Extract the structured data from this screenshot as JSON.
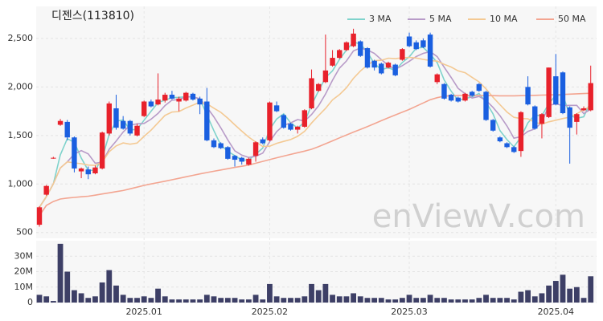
{
  "chart_data": [
    {
      "type": "candlestick",
      "title": "디젠스(113810)",
      "watermark": "enViewV.com",
      "up_color": "#e8212b",
      "down_color": "#1a5fe0",
      "open": [
        580,
        890,
        1270,
        1610,
        1640,
        1480,
        1130,
        1150,
        1110,
        1160,
        1520,
        1780,
        1650,
        1650,
        1500,
        1700,
        1850,
        1820,
        1860,
        1920,
        1850,
        1860,
        1930,
        1880,
        1850,
        1450,
        1420,
        1380,
        1290,
        1270,
        1200,
        1290,
        1460,
        1450,
        1810,
        1710,
        1620,
        1560,
        1590,
        1780,
        1960,
        2050,
        2220,
        2300,
        2380,
        2420,
        2470,
        2400,
        2270,
        2240,
        2200,
        2230,
        2280,
        2520,
        2460,
        2480,
        2540,
        2050,
        2030,
        1920,
        1890,
        1860,
        1950,
        2030,
        1950,
        1660,
        1480,
        1420,
        1380,
        1340,
        2000,
        1800,
        1620,
        1690,
        2110,
        2150,
        1790,
        1640,
        1760,
        1760
      ],
      "high": [
        770,
        990,
        1280,
        1670,
        1660,
        1490,
        1170,
        1180,
        1190,
        1540,
        1850,
        1920,
        1700,
        1660,
        1620,
        1860,
        1870,
        2140,
        1940,
        1960,
        1900,
        1950,
        1940,
        1900,
        1990,
        1470,
        1430,
        1390,
        1300,
        1280,
        1270,
        1440,
        1480,
        1850,
        1850,
        1720,
        1630,
        1600,
        1770,
        2180,
        2040,
        2540,
        2380,
        2390,
        2470,
        2600,
        2480,
        2410,
        2280,
        2250,
        2260,
        2240,
        2400,
        2560,
        2480,
        2500,
        2560,
        2140,
        2040,
        1930,
        1900,
        1940,
        1960,
        2040,
        1960,
        1670,
        1490,
        1430,
        1390,
        1750,
        2110,
        1810,
        1730,
        2200,
        2340,
        2160,
        1800,
        1730,
        1800,
        2220
      ],
      "low": [
        560,
        880,
        1260,
        1600,
        1450,
        1120,
        1060,
        1050,
        1100,
        1150,
        1500,
        1560,
        1560,
        1500,
        1490,
        1690,
        1790,
        1810,
        1840,
        1870,
        1750,
        1850,
        1860,
        1720,
        1440,
        1370,
        1360,
        1250,
        1180,
        1200,
        1190,
        1230,
        1410,
        1440,
        1740,
        1570,
        1550,
        1520,
        1580,
        1770,
        1950,
        2040,
        2210,
        2290,
        2370,
        2410,
        2310,
        2190,
        2170,
        2130,
        2190,
        2110,
        2270,
        2410,
        2380,
        2400,
        2200,
        2030,
        1870,
        1850,
        1840,
        1850,
        1900,
        1950,
        1650,
        1540,
        1430,
        1370,
        1320,
        1280,
        1810,
        1560,
        1470,
        1680,
        1810,
        1720,
        1210,
        1510,
        1750,
        1750
      ],
      "close": [
        760,
        980,
        1270,
        1650,
        1480,
        1160,
        1160,
        1100,
        1170,
        1530,
        1830,
        1580,
        1570,
        1520,
        1600,
        1850,
        1800,
        1870,
        1920,
        1880,
        1880,
        1940,
        1870,
        1820,
        1450,
        1380,
        1370,
        1260,
        1250,
        1230,
        1260,
        1430,
        1420,
        1840,
        1750,
        1580,
        1560,
        1590,
        1760,
        2090,
        2030,
        2170,
        2300,
        2380,
        2460,
        2550,
        2320,
        2200,
        2200,
        2140,
        2250,
        2120,
        2390,
        2420,
        2390,
        2410,
        2210,
        2130,
        1880,
        1860,
        1850,
        1930,
        1910,
        1960,
        1660,
        1550,
        1440,
        1380,
        1330,
        1740,
        1820,
        1570,
        1720,
        2200,
        1820,
        1730,
        1580,
        1720,
        1780,
        2040
      ],
      "series": [
        {
          "name": "3 MA",
          "color": "#7fd3cc",
          "values": [
            760,
            870,
            1003,
            1300,
            1467,
            1430,
            1267,
            1140,
            1143,
            1267,
            1510,
            1647,
            1660,
            1557,
            1563,
            1657,
            1750,
            1840,
            1863,
            1890,
            1893,
            1900,
            1897,
            1877,
            1713,
            1550,
            1400,
            1337,
            1293,
            1247,
            1247,
            1307,
            1370,
            1563,
            1670,
            1723,
            1630,
            1577,
            1637,
            1813,
            1960,
            2097,
            2167,
            2283,
            2380,
            2463,
            2443,
            2357,
            2240,
            2180,
            2197,
            2170,
            2253,
            2310,
            2400,
            2407,
            2337,
            2250,
            2073,
            1957,
            1863,
            1880,
            1897,
            1933,
            1843,
            1723,
            1550,
            1457,
            1383,
            1483,
            1630,
            1710,
            1703,
            1830,
            1913,
            1917,
            1710,
            1677,
            1693,
            1847
          ]
        },
        {
          "name": "5 MA",
          "color": "#b89bc8",
          "values": [
            760,
            870,
            1003,
            1165,
            1228,
            1308,
            1344,
            1310,
            1214,
            1224,
            1358,
            1442,
            1536,
            1606,
            1620,
            1624,
            1668,
            1728,
            1808,
            1864,
            1870,
            1898,
            1898,
            1878,
            1792,
            1692,
            1578,
            1454,
            1342,
            1298,
            1274,
            1286,
            1318,
            1436,
            1540,
            1604,
            1630,
            1664,
            1648,
            1716,
            1806,
            1928,
            2070,
            2194,
            2268,
            2372,
            2402,
            2382,
            2346,
            2282,
            2222,
            2182,
            2220,
            2264,
            2314,
            2346,
            2364,
            2312,
            2204,
            2098,
            1986,
            1930,
            1886,
            1902,
            1862,
            1790,
            1704,
            1598,
            1472,
            1488,
            1542,
            1568,
            1636,
            1810,
            1826,
            1808,
            1810,
            1810,
            1726,
            1770
          ]
        },
        {
          "name": "10 MA",
          "color": "#f4c993",
          "values": [
            760,
            870,
            1003,
            1165,
            1228,
            1217,
            1209,
            1195,
            1192,
            1226,
            1333,
            1393,
            1423,
            1410,
            1422,
            1491,
            1555,
            1632,
            1707,
            1742,
            1747,
            1783,
            1813,
            1843,
            1828,
            1781,
            1738,
            1677,
            1610,
            1545,
            1483,
            1432,
            1387,
            1389,
            1419,
            1439,
            1458,
            1491,
            1542,
            1628,
            1705,
            1779,
            1867,
            1921,
            1992,
            2089,
            2165,
            2226,
            2270,
            2275,
            2297,
            2292,
            2301,
            2305,
            2298,
            2284,
            2273,
            2266,
            2234,
            2206,
            2166,
            2147,
            2099,
            2053,
            1980,
            1894,
            1817,
            1742,
            1687,
            1675,
            1672,
            1636,
            1617,
            1641,
            1657,
            1675,
            1689,
            1723,
            1768,
            1798
          ]
        },
        {
          "name": "50 MA",
          "color": "#f3a591",
          "values": [
            674,
            780,
            820,
            845,
            855,
            862,
            868,
            874,
            885,
            897,
            909,
            921,
            933,
            950,
            968,
            986,
            1001,
            1015,
            1029,
            1044,
            1059,
            1074,
            1089,
            1104,
            1118,
            1131,
            1145,
            1158,
            1171,
            1183,
            1195,
            1214,
            1233,
            1251,
            1270,
            1288,
            1305,
            1322,
            1339,
            1358,
            1385,
            1415,
            1445,
            1475,
            1505,
            1535,
            1563,
            1592,
            1622,
            1652,
            1682,
            1712,
            1740,
            1768,
            1802,
            1835,
            1868,
            1890,
            1905,
            1910,
            1912,
            1913,
            1913,
            1912,
            1911,
            1910,
            1909,
            1909,
            1909,
            1910,
            1912,
            1914,
            1916,
            1918,
            1920,
            1923,
            1926,
            1929,
            1932,
            1935
          ]
        }
      ],
      "ylim": [
        440,
        2830
      ],
      "yticks": [
        500,
        {
          "value": 1000,
          "label": "1,000"
        },
        {
          "value": 1500,
          "label": "1,500"
        },
        {
          "value": 2000,
          "label": "2,000"
        },
        {
          "value": 2500,
          "label": "2,500"
        }
      ],
      "grid": true,
      "legend": "top-right"
    },
    {
      "type": "bar",
      "color": "#3d3f66",
      "categories": [
        null,
        null,
        null,
        null,
        null,
        null,
        null,
        null,
        null,
        null,
        null,
        null,
        null,
        null,
        null,
        "2025.01",
        null,
        null,
        null,
        null,
        null,
        null,
        null,
        null,
        null,
        null,
        null,
        null,
        null,
        null,
        null,
        null,
        null,
        "2025.02",
        null,
        null,
        null,
        null,
        null,
        null,
        null,
        null,
        null,
        null,
        null,
        null,
        null,
        null,
        null,
        null,
        null,
        null,
        null,
        "2025.03",
        null,
        null,
        null,
        null,
        null,
        null,
        null,
        null,
        null,
        null,
        null,
        null,
        null,
        null,
        null,
        null,
        null,
        null,
        null,
        null,
        "2025.04",
        null,
        null,
        null,
        null,
        null
      ],
      "values": [
        5000000,
        4000000,
        1000000,
        38000000,
        20000000,
        8000000,
        6000000,
        3000000,
        4000000,
        13000000,
        21000000,
        11000000,
        5000000,
        3000000,
        3000000,
        4000000,
        3000000,
        9000000,
        4000000,
        2000000,
        2000000,
        2000000,
        2000000,
        2000000,
        5000000,
        4000000,
        3000000,
        3000000,
        3000000,
        2000000,
        2000000,
        5000000,
        2000000,
        12000000,
        4000000,
        3000000,
        3000000,
        3000000,
        4000000,
        12000000,
        8000000,
        12000000,
        5000000,
        4000000,
        4000000,
        6000000,
        4000000,
        3000000,
        3000000,
        3000000,
        2000000,
        2000000,
        3000000,
        5000000,
        3000000,
        3000000,
        5000000,
        3000000,
        3000000,
        2000000,
        2000000,
        2000000,
        2000000,
        3000000,
        5000000,
        3000000,
        3000000,
        3000000,
        2000000,
        7000000,
        8000000,
        4000000,
        6000000,
        11000000,
        14000000,
        18000000,
        9000000,
        10000000,
        3000000,
        17000000
      ],
      "ylim": [
        0,
        40000000
      ],
      "yticks": [
        0,
        {
          "value": 10000000,
          "label": "10M"
        },
        {
          "value": 20000000,
          "label": "20M"
        },
        {
          "value": 30000000,
          "label": "30M"
        }
      ],
      "grid": true
    }
  ]
}
